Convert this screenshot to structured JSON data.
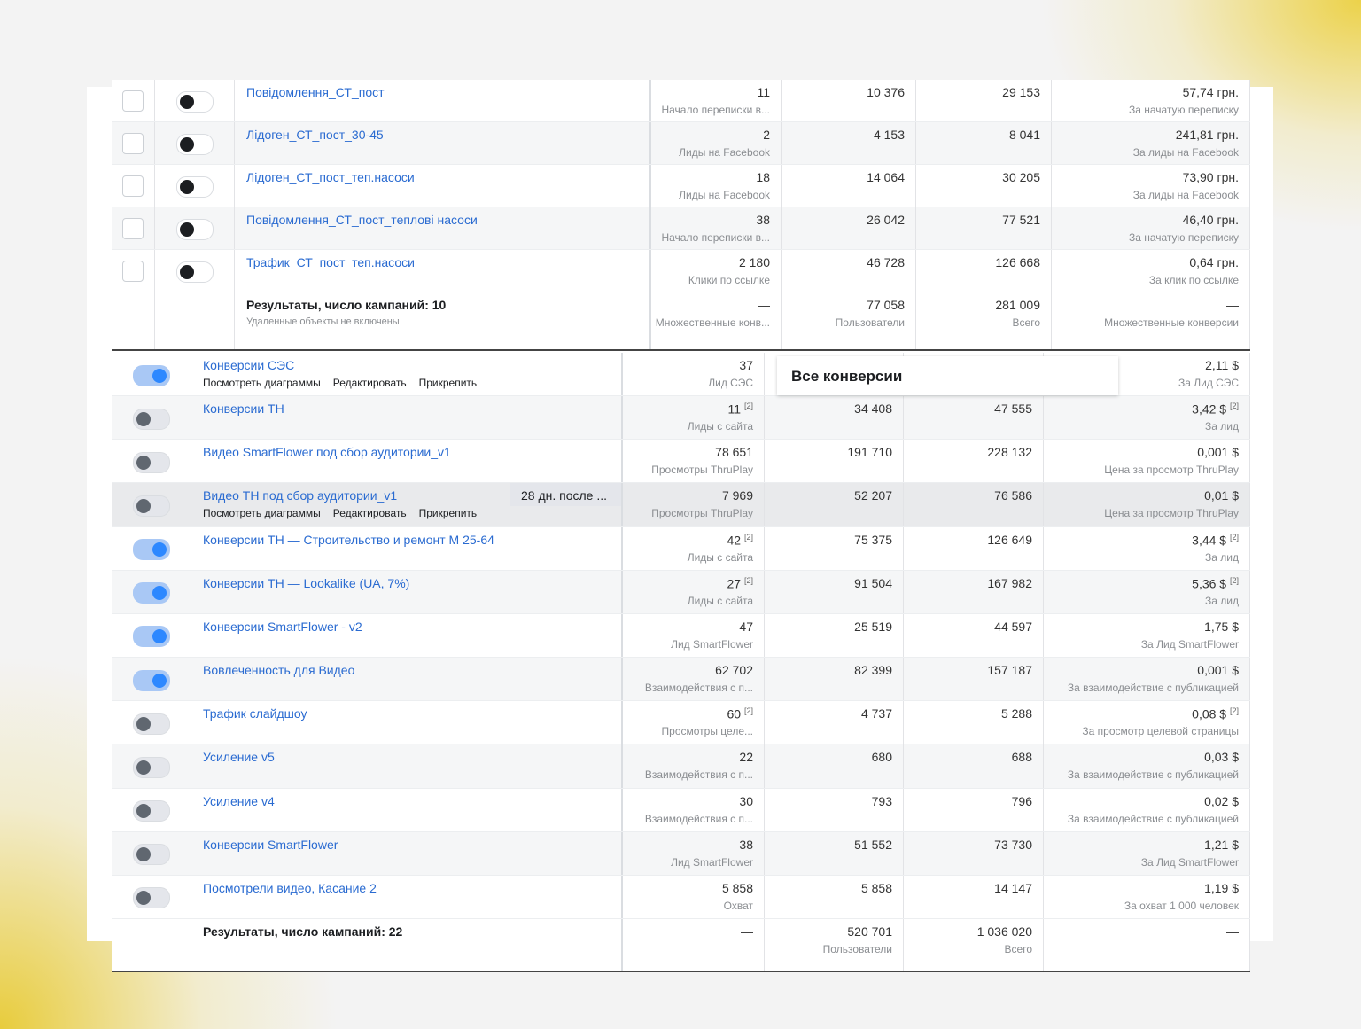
{
  "table1": {
    "rows": [
      {
        "name": "Повідомлення_СТ_пост",
        "result": "11",
        "result_label": "Начало переписки в...",
        "reach": "10 376",
        "impressions": "29 153",
        "cost": "57,74 грн.",
        "cost_label": "За начатую переписку",
        "active": false
      },
      {
        "name": "Лідоген_СТ_пост_30-45",
        "result": "2",
        "result_label": "Лиды на Facebook",
        "reach": "4 153",
        "impressions": "8 041",
        "cost": "241,81 грн.",
        "cost_label": "За лиды на Facebook",
        "active": false
      },
      {
        "name": "Лідоген_СТ_пост_теп.насоси",
        "result": "18",
        "result_label": "Лиды на Facebook",
        "reach": "14 064",
        "impressions": "30 205",
        "cost": "73,90 грн.",
        "cost_label": "За лиды на Facebook",
        "active": false
      },
      {
        "name": "Повідомлення_СТ_пост_теплові насоси",
        "result": "38",
        "result_label": "Начало переписки в...",
        "reach": "26 042",
        "impressions": "77 521",
        "cost": "46,40 грн.",
        "cost_label": "За начатую переписку",
        "active": false
      },
      {
        "name": "Трафик_СТ_пост_теп.насоси",
        "result": "2 180",
        "result_label": "Клики по ссылке",
        "reach": "46 728",
        "impressions": "126 668",
        "cost": "0,64 грн.",
        "cost_label": "За клик по ссылке",
        "active": false
      }
    ],
    "summary": {
      "name": "Результаты, число кампаний: 10",
      "name_label": "Удаленные объекты не включены",
      "result": "—",
      "result_label": "Множественные конв...",
      "reach": "77 058",
      "reach_label": "Пользователи",
      "impressions": "281 009",
      "impressions_label": "Всего",
      "cost": "—",
      "cost_label": "Множественные конверсии"
    }
  },
  "table2": {
    "tooltip": "Все конверсии",
    "rows": [
      {
        "name": "Конверсии СЭС",
        "result": "37",
        "result_label": "Лид СЭС",
        "cost": "2,11 $",
        "cost_label": "За Лид СЭС",
        "active": true,
        "actions": [
          "Посмотреть диаграммы",
          "Редактировать",
          "Прикрепить"
        ]
      },
      {
        "name": "Конверсии ТН",
        "result": "11",
        "result_note": "[2]",
        "result_label": "Лиды с сайта",
        "reach": "34 408",
        "impressions": "47 555",
        "cost": "3,42 $",
        "cost_note": "[2]",
        "cost_label": "За лид",
        "active": false
      },
      {
        "name": "Видео SmartFlower под сбор аудитории_v1",
        "result": "78 651",
        "result_label": "Просмотры ThruPlay",
        "reach": "191 710",
        "impressions": "228 132",
        "cost": "0,001 $",
        "cost_label": "Цена за просмотр ThruPlay",
        "active": false
      },
      {
        "name": "Видео ТН под сбор аудитории_v1",
        "attribution": "28 дн. после ...",
        "result": "7 969",
        "result_label": "Просмотры ThruPlay",
        "reach": "52 207",
        "impressions": "76 586",
        "cost": "0,01 $",
        "cost_label": "Цена за просмотр ThruPlay",
        "active": false,
        "actions": [
          "Посмотреть диаграммы",
          "Редактировать",
          "Прикрепить"
        ]
      },
      {
        "name": "Конверсии ТН — Строительство и ремонт М 25-64",
        "result": "42",
        "result_note": "[2]",
        "result_label": "Лиды с сайта",
        "reach": "75 375",
        "impressions": "126 649",
        "cost": "3,44 $",
        "cost_note": "[2]",
        "cost_label": "За лид",
        "active": true
      },
      {
        "name": "Конверсии ТН — Lookalike (UA, 7%)",
        "result": "27",
        "result_note": "[2]",
        "result_label": "Лиды с сайта",
        "reach": "91 504",
        "impressions": "167 982",
        "cost": "5,36 $",
        "cost_note": "[2]",
        "cost_label": "За лид",
        "active": true
      },
      {
        "name": "Конверсии SmartFlower - v2",
        "result": "47",
        "result_label": "Лид SmartFlower",
        "reach": "25 519",
        "impressions": "44 597",
        "cost": "1,75 $",
        "cost_label": "За Лид SmartFlower",
        "active": true
      },
      {
        "name": "Вовлеченность для Видео",
        "result": "62 702",
        "result_label": "Взаимодействия с п...",
        "reach": "82 399",
        "impressions": "157 187",
        "cost": "0,001 $",
        "cost_label": "За взаимодействие с публикацией",
        "active": true
      },
      {
        "name": "Трафик слайдшоу",
        "result": "60",
        "result_note": "[2]",
        "result_label": "Просмотры целе...",
        "reach": "4 737",
        "impressions": "5 288",
        "cost": "0,08 $",
        "cost_note": "[2]",
        "cost_label": "За просмотр целевой страницы",
        "active": false
      },
      {
        "name": "Усиление v5",
        "result": "22",
        "result_label": "Взаимодействия с п...",
        "reach": "680",
        "impressions": "688",
        "cost": "0,03 $",
        "cost_label": "За взаимодействие с публикацией",
        "active": false
      },
      {
        "name": "Усиление v4",
        "result": "30",
        "result_label": "Взаимодействия с п...",
        "reach": "793",
        "impressions": "796",
        "cost": "0,02 $",
        "cost_label": "За взаимодействие с публикацией",
        "active": false
      },
      {
        "name": "Конверсии SmartFlower",
        "result": "38",
        "result_label": "Лид SmartFlower",
        "reach": "51 552",
        "impressions": "73 730",
        "cost": "1,21 $",
        "cost_label": "За Лид SmartFlower",
        "active": false
      },
      {
        "name": "Посмотрели видео, Касание 2",
        "result": "5 858",
        "result_label": "Охват",
        "reach": "5 858",
        "impressions": "14 147",
        "cost": "1,19 $",
        "cost_label": "За охват 1 000 человек",
        "active": false
      }
    ],
    "summary": {
      "name": "Результаты, число кампаний: 22",
      "result": "—",
      "reach": "520 701",
      "reach_label": "Пользователи",
      "impressions": "1 036 020",
      "impressions_label": "Всего",
      "cost": "—"
    }
  }
}
